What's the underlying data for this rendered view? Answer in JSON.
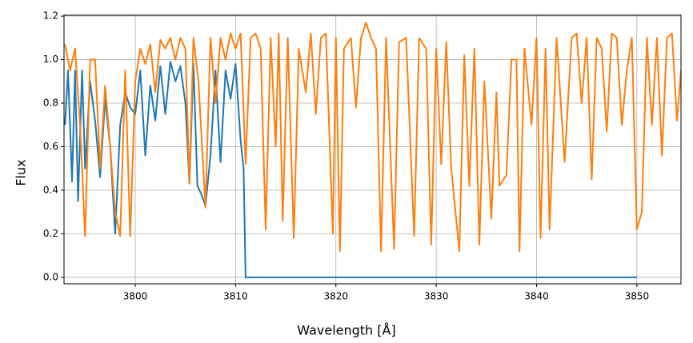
{
  "chart_data": {
    "type": "line",
    "x_label": "Wavelength [Å]",
    "y_label": "Flux",
    "xlim": [
      3792.9,
      3854.4
    ],
    "ylim": [
      -0.03,
      1.204
    ],
    "xticks": [
      3800,
      3810,
      3820,
      3830,
      3840,
      3850
    ],
    "yticks": [
      {
        "value": 0,
        "label": "0.0"
      },
      0.2,
      0.4,
      0.6,
      0.8,
      {
        "value": 1,
        "label": "1.0"
      },
      1.2
    ],
    "grid": true,
    "series": [
      {
        "color": "#1f77b4",
        "x": [
          3793,
          3793.3,
          3793.7,
          3794,
          3794.3,
          3794.7,
          3795,
          3795.5,
          3796,
          3796.5,
          3797,
          3797.5,
          3798,
          3798.5,
          3799,
          3799.5,
          3800,
          3800.5,
          3801,
          3801.5,
          3802,
          3802.5,
          3803,
          3803.5,
          3804,
          3804.5,
          3805,
          3805.4,
          3805.8,
          3806.2,
          3806.6,
          3807,
          3807.5,
          3808,
          3808.5,
          3809,
          3809.5,
          3810,
          3810.5,
          3810.8,
          3811,
          3850
        ],
        "values": [
          0.7,
          0.95,
          0.44,
          0.95,
          0.35,
          0.95,
          0.5,
          0.9,
          0.72,
          0.46,
          0.82,
          0.6,
          0.2,
          0.7,
          0.85,
          0.78,
          0.75,
          0.95,
          0.56,
          0.88,
          0.72,
          0.97,
          0.75,
          0.99,
          0.9,
          0.97,
          0.8,
          0.43,
          0.98,
          0.42,
          0.38,
          0.33,
          0.56,
          0.95,
          0.53,
          0.95,
          0.82,
          0.98,
          0.63,
          0.5,
          0,
          0
        ]
      },
      {
        "color": "#ff7f0e",
        "x": [
          3793,
          3793.5,
          3794,
          3794.5,
          3795,
          3795.5,
          3796,
          3796.5,
          3797,
          3797.5,
          3798,
          3798.5,
          3799,
          3799.5,
          3800,
          3800.5,
          3801,
          3801.5,
          3802,
          3802.5,
          3803,
          3803.5,
          3804,
          3804.5,
          3805,
          3805.4,
          3805.8,
          3806.3,
          3807,
          3807.5,
          3808,
          3808.5,
          3809,
          3809.5,
          3810,
          3810.5,
          3811,
          3811.5,
          3812,
          3812.5,
          3813,
          3813.5,
          3814,
          3814.3,
          3814.7,
          3815.2,
          3815.8,
          3816.3,
          3817,
          3817.5,
          3818,
          3818.5,
          3819,
          3819.7,
          3820,
          3820.4,
          3820.8,
          3821.5,
          3822,
          3822.5,
          3823,
          3823.5,
          3824,
          3824.5,
          3825,
          3825.8,
          3826.3,
          3827,
          3827.8,
          3828.3,
          3829,
          3829.5,
          3830,
          3830.5,
          3831,
          3831.5,
          3832.3,
          3832.8,
          3833.3,
          3833.8,
          3834.3,
          3834.8,
          3835.5,
          3836,
          3836.3,
          3837,
          3837.5,
          3838,
          3838.3,
          3838.8,
          3839.5,
          3840,
          3840.4,
          3840.9,
          3841.3,
          3842,
          3842.8,
          3843.5,
          3844,
          3844.5,
          3845,
          3845.5,
          3846,
          3846.5,
          3847,
          3847.5,
          3848,
          3848.5,
          3849,
          3849.5,
          3850,
          3850.5,
          3851,
          3851.5,
          3852,
          3852.5,
          3853,
          3853.5,
          3854,
          3854.4
        ],
        "values": [
          1.07,
          0.95,
          1.05,
          0.7,
          0.19,
          1.0,
          1.0,
          0.5,
          0.88,
          0.6,
          0.3,
          0.19,
          0.95,
          0.19,
          0.9,
          1.05,
          0.98,
          1.07,
          0.85,
          1.09,
          1.05,
          1.1,
          1.0,
          1.1,
          1.05,
          0.43,
          1.1,
          0.9,
          0.32,
          1.1,
          0.8,
          1.1,
          1.0,
          1.12,
          1.05,
          1.12,
          0.52,
          1.1,
          1.12,
          1.05,
          0.22,
          1.1,
          0.6,
          1.12,
          0.26,
          1.1,
          0.18,
          1.05,
          0.85,
          1.12,
          0.75,
          1.1,
          1.12,
          0.2,
          1.1,
          0.12,
          1.05,
          1.1,
          0.78,
          1.1,
          1.17,
          1.1,
          1.05,
          0.12,
          1.1,
          0.13,
          1.08,
          1.1,
          0.19,
          1.1,
          1.05,
          0.15,
          1.05,
          0.52,
          1.08,
          0.5,
          0.12,
          1.02,
          0.42,
          1.05,
          0.15,
          0.9,
          0.27,
          0.85,
          0.42,
          0.47,
          1.0,
          1.0,
          0.12,
          1.05,
          0.7,
          1.1,
          0.18,
          1.05,
          0.22,
          1.1,
          0.53,
          1.1,
          1.12,
          0.8,
          1.1,
          0.45,
          1.1,
          1.05,
          0.67,
          1.12,
          1.1,
          0.7,
          0.95,
          1.1,
          0.22,
          0.3,
          1.1,
          0.7,
          1.1,
          0.56,
          1.1,
          1.12,
          0.72,
          0.95
        ]
      }
    ]
  }
}
